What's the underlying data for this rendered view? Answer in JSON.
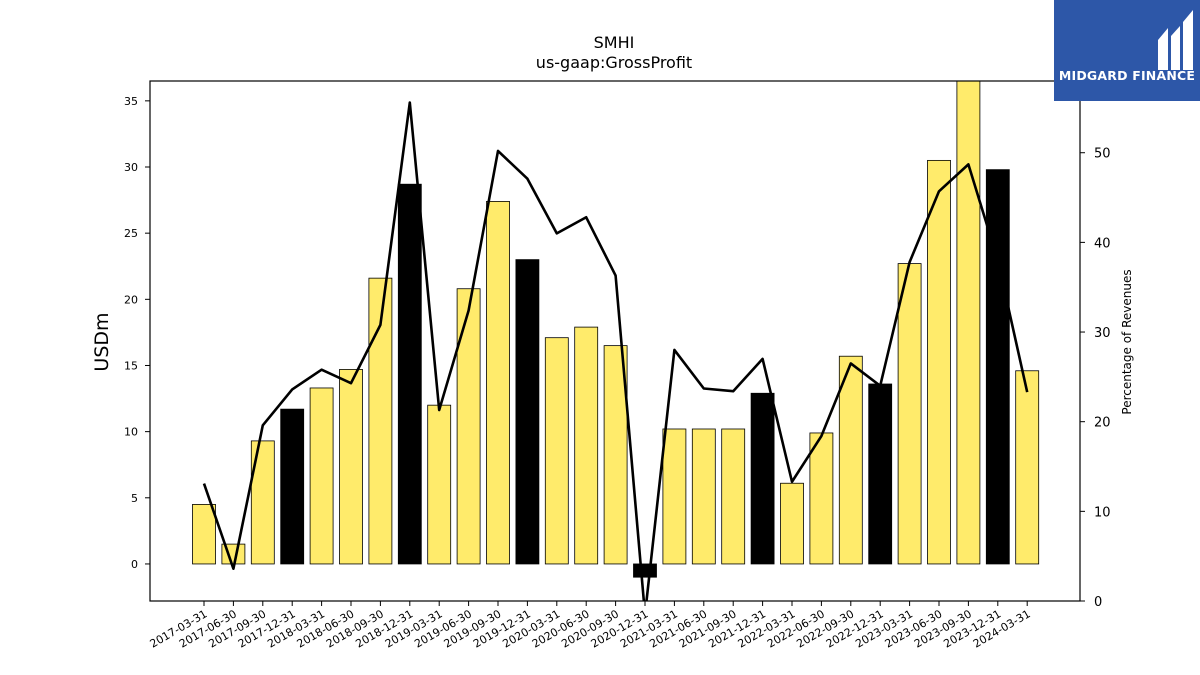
{
  "chart_data": {
    "type": "bar",
    "title": "SMHI",
    "subtitle": "us-gaap:GrossProfit",
    "ylabel": "USDm",
    "y2label": "Percentage of Revenues",
    "categories": [
      "2017-03-31",
      "2017-06-30",
      "2017-09-30",
      "2017-12-31",
      "2018-03-31",
      "2018-06-30",
      "2018-09-30",
      "2018-12-31",
      "2019-03-31",
      "2019-06-30",
      "2019-09-30",
      "2019-12-31",
      "2020-03-31",
      "2020-06-30",
      "2020-09-30",
      "2020-12-31",
      "2021-03-31",
      "2021-06-30",
      "2021-09-30",
      "2021-12-31",
      "2022-03-31",
      "2022-06-30",
      "2022-09-30",
      "2022-12-31",
      "2023-03-31",
      "2023-06-30",
      "2023-09-30",
      "2023-12-31",
      "2024-03-31"
    ],
    "series": [
      {
        "type": "bar",
        "axis": "left",
        "values": [
          4.5,
          1.5,
          9.3,
          11.7,
          13.3,
          14.7,
          21.6,
          28.7,
          12.0,
          20.8,
          27.4,
          23.0,
          17.1,
          17.9,
          16.5,
          -1.0,
          10.2,
          10.2,
          10.2,
          12.9,
          6.1,
          9.9,
          15.7,
          13.6,
          22.7,
          30.5,
          36.5,
          29.8,
          14.6
        ],
        "fill": [
          "#ffeb6b",
          "#ffeb6b",
          "#ffeb6b",
          "#000000",
          "#ffeb6b",
          "#ffeb6b",
          "#ffeb6b",
          "#000000",
          "#ffeb6b",
          "#ffeb6b",
          "#ffeb6b",
          "#000000",
          "#ffeb6b",
          "#ffeb6b",
          "#ffeb6b",
          "#000000",
          "#ffeb6b",
          "#ffeb6b",
          "#ffeb6b",
          "#000000",
          "#ffeb6b",
          "#ffeb6b",
          "#ffeb6b",
          "#000000",
          "#ffeb6b",
          "#ffeb6b",
          "#ffeb6b",
          "#000000",
          "#ffeb6b"
        ]
      },
      {
        "type": "line",
        "axis": "right",
        "color": "#000000",
        "values": [
          13.1,
          3.6,
          19.6,
          23.6,
          25.8,
          24.3,
          30.8,
          55.6,
          21.3,
          32.4,
          50.2,
          47.1,
          41.0,
          42.8,
          36.3,
          -1.5,
          28.0,
          23.7,
          23.4,
          27.0,
          13.3,
          18.4,
          26.5,
          24.0,
          37.8,
          45.7,
          48.7,
          38.0,
          23.3
        ]
      }
    ],
    "ylim": [
      -2.8,
      36.5
    ],
    "y2lim": [
      0,
      58
    ],
    "yticks": [
      0,
      5,
      10,
      15,
      20,
      25,
      30,
      35
    ],
    "y2ticks": [
      0,
      10,
      20,
      30,
      40,
      50
    ],
    "grid": false,
    "legend": "none"
  },
  "logo": {
    "text": "MIDGARD FINANCE",
    "color": "#2d57a8"
  }
}
